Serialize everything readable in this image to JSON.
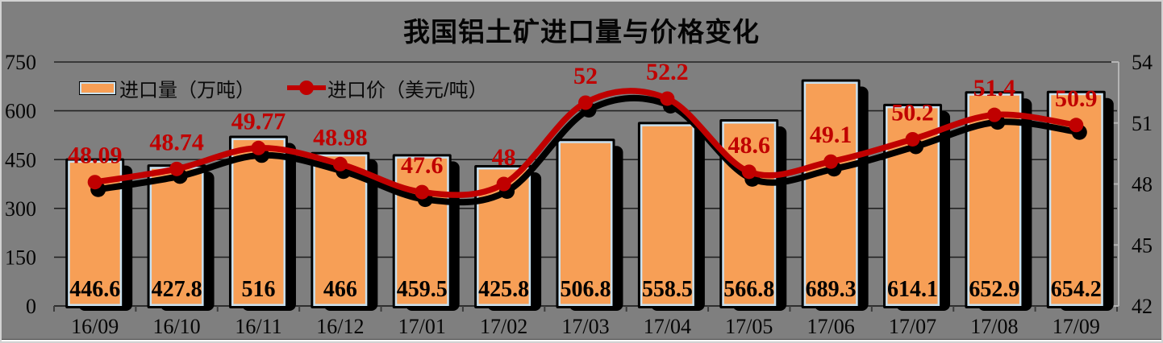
{
  "chart_data": {
    "type": "bar+line",
    "title": "我国铝土矿进口量与价格变化",
    "categories": [
      "16/09",
      "16/10",
      "16/11",
      "16/12",
      "17/01",
      "17/02",
      "17/03",
      "17/04",
      "17/05",
      "17/06",
      "17/07",
      "17/08",
      "17/09"
    ],
    "series": [
      {
        "name": "进口量（万吨）",
        "type": "bar",
        "axis": "left",
        "values": [
          446.6,
          427.8,
          516,
          466,
          459.5,
          425.8,
          506.8,
          558.5,
          566.8,
          689.3,
          614.1,
          652.9,
          654.2
        ],
        "labels": [
          "446.6",
          "427.8",
          "516",
          "466",
          "459.5",
          "425.8",
          "506.8",
          "558.5",
          "566.8",
          "689.3",
          "614.1",
          "652.9",
          "654.2"
        ]
      },
      {
        "name": "进口价（美元/吨）",
        "type": "line",
        "smooth": true,
        "axis": "right",
        "values": [
          48.09,
          48.74,
          49.77,
          48.98,
          47.6,
          48,
          52,
          52.2,
          48.6,
          49.1,
          50.2,
          51.4,
          50.9
        ],
        "labels": [
          "48.09",
          "48.74",
          "49.77",
          "48.98",
          "47.6",
          "48",
          "52",
          "52.2",
          "48.6",
          "49.1",
          "50.2",
          "51.4",
          "50.9"
        ]
      }
    ],
    "left_axis": {
      "min": 0,
      "max": 750,
      "ticks": [
        0,
        150,
        300,
        450,
        600,
        750
      ]
    },
    "right_axis": {
      "min": 42,
      "max": 54,
      "ticks": [
        42,
        45,
        48,
        51,
        54
      ]
    },
    "grid": true,
    "legend_position": "top-inside-left"
  },
  "legend": {
    "bar_label": "进口量（万吨）",
    "line_label": "进口价（美元/吨）"
  },
  "colors": {
    "background": "#7F7F7F",
    "bar_fill": "#F79F56",
    "bar_border": "#C9E1F0",
    "bar_outline": "#000000",
    "bar_shadow": "#000000",
    "line": "#C00000",
    "line_shadow": "#000000",
    "data_label_line": "#C00000",
    "data_label_bar": "#000000",
    "gridline": "#222222",
    "axis_text": "#050505",
    "right_axis_line": "#B4B4B4"
  }
}
